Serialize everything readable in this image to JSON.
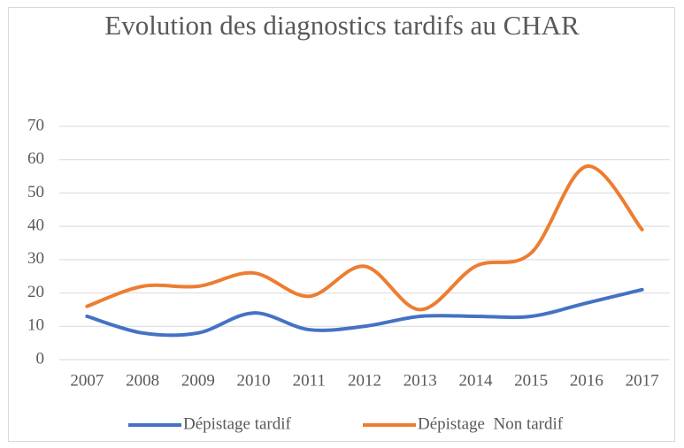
{
  "chart_data": {
    "type": "line",
    "title": "Evolution des diagnostics tardifs au CHAR",
    "categories": [
      "2007",
      "2008",
      "2009",
      "2010",
      "2011",
      "2012",
      "2013",
      "2014",
      "2015",
      "2016",
      "2017"
    ],
    "series": [
      {
        "name": "Dépistage tardif",
        "color": "#4472c4",
        "values": [
          13,
          8,
          8,
          14,
          9,
          10,
          13,
          13,
          13,
          17,
          21
        ]
      },
      {
        "name": "Dépistage  Non tardif",
        "color": "#ed7d31",
        "values": [
          16,
          22,
          22,
          26,
          19,
          28,
          15,
          28,
          32,
          58,
          39
        ]
      }
    ],
    "ylim": [
      0,
      70
    ],
    "yticks": [
      0,
      10,
      20,
      30,
      40,
      50,
      60,
      70
    ],
    "grid": true,
    "legend": "bottom",
    "smooth": true
  }
}
